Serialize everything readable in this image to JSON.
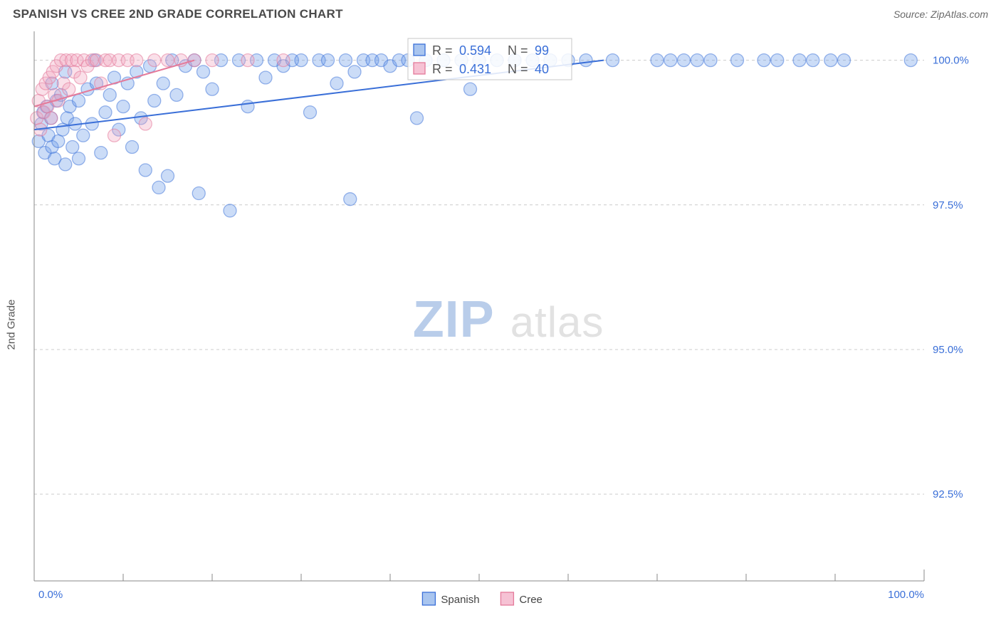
{
  "header": {
    "title": "SPANISH VS CREE 2ND GRADE CORRELATION CHART",
    "source": "Source: ZipAtlas.com"
  },
  "chart": {
    "type": "scatter",
    "ylabel": "2nd Grade",
    "background_color": "#ffffff",
    "grid_color": "#cccccc",
    "axis_color": "#888888",
    "xlim": [
      0,
      100
    ],
    "ylim": [
      91.0,
      100.5
    ],
    "x_ticks_major": [
      0,
      100
    ],
    "x_ticks_minor": [
      10,
      20,
      30,
      40,
      50,
      60,
      70,
      80,
      90
    ],
    "y_gridlines": [
      92.5,
      95.0,
      97.5,
      100.0
    ],
    "y_tick_labels": [
      "92.5%",
      "95.0%",
      "97.5%",
      "100.0%"
    ],
    "x_tick_labels": {
      "min": "0.0%",
      "max": "100.0%"
    },
    "marker_radius": 9,
    "series": [
      {
        "name": "Spanish",
        "color_fill": "#6b9be8",
        "color_stroke": "#3a6fd8",
        "R": "0.594",
        "N": "99",
        "trend": {
          "x1": 0,
          "y1": 98.8,
          "x2": 64,
          "y2": 100.0
        },
        "points": [
          [
            0.5,
            98.6
          ],
          [
            0.8,
            98.9
          ],
          [
            1.0,
            99.1
          ],
          [
            1.2,
            98.4
          ],
          [
            1.4,
            99.2
          ],
          [
            1.6,
            98.7
          ],
          [
            1.9,
            99.0
          ],
          [
            2.0,
            98.5
          ],
          [
            2.3,
            98.3
          ],
          [
            2.5,
            99.3
          ],
          [
            2.7,
            98.6
          ],
          [
            3.0,
            99.4
          ],
          [
            3.2,
            98.8
          ],
          [
            3.5,
            98.2
          ],
          [
            3.7,
            99.0
          ],
          [
            4.0,
            99.2
          ],
          [
            4.3,
            98.5
          ],
          [
            4.6,
            98.9
          ],
          [
            5.0,
            99.3
          ],
          [
            5.5,
            98.7
          ],
          [
            6.0,
            99.5
          ],
          [
            6.5,
            98.9
          ],
          [
            7.0,
            99.6
          ],
          [
            7.5,
            98.4
          ],
          [
            8.0,
            99.1
          ],
          [
            8.5,
            99.4
          ],
          [
            9.0,
            99.7
          ],
          [
            9.5,
            98.8
          ],
          [
            10.0,
            99.2
          ],
          [
            10.5,
            99.6
          ],
          [
            11.0,
            98.5
          ],
          [
            11.5,
            99.8
          ],
          [
            12.0,
            99.0
          ],
          [
            12.5,
            98.1
          ],
          [
            13.0,
            99.9
          ],
          [
            13.5,
            99.3
          ],
          [
            14.0,
            97.8
          ],
          [
            14.5,
            99.6
          ],
          [
            15.0,
            98.0
          ],
          [
            15.5,
            100.0
          ],
          [
            16.0,
            99.4
          ],
          [
            17.0,
            99.9
          ],
          [
            18.0,
            100.0
          ],
          [
            18.5,
            97.7
          ],
          [
            19.0,
            99.8
          ],
          [
            20.0,
            99.5
          ],
          [
            21.0,
            100.0
          ],
          [
            22.0,
            97.4
          ],
          [
            23.0,
            100.0
          ],
          [
            24.0,
            99.2
          ],
          [
            25.0,
            100.0
          ],
          [
            26.0,
            99.7
          ],
          [
            27.0,
            100.0
          ],
          [
            28.0,
            99.9
          ],
          [
            29.0,
            100.0
          ],
          [
            30.0,
            100.0
          ],
          [
            31.0,
            99.1
          ],
          [
            32.0,
            100.0
          ],
          [
            33.0,
            100.0
          ],
          [
            34.0,
            99.6
          ],
          [
            35.0,
            100.0
          ],
          [
            35.5,
            97.6
          ],
          [
            36.0,
            99.8
          ],
          [
            37.0,
            100.0
          ],
          [
            38.0,
            100.0
          ],
          [
            39.0,
            100.0
          ],
          [
            40.0,
            99.9
          ],
          [
            41.0,
            100.0
          ],
          [
            42.0,
            100.0
          ],
          [
            43.0,
            99.0
          ],
          [
            44.0,
            100.0
          ],
          [
            46.0,
            100.0
          ],
          [
            48.0,
            100.0
          ],
          [
            49.0,
            99.5
          ],
          [
            50.0,
            100.0
          ],
          [
            52.0,
            100.0
          ],
          [
            54.0,
            100.0
          ],
          [
            56.0,
            100.0
          ],
          [
            58.0,
            100.0
          ],
          [
            60.0,
            100.0
          ],
          [
            62.0,
            100.0
          ],
          [
            65.0,
            100.0
          ],
          [
            70.0,
            100.0
          ],
          [
            71.5,
            100.0
          ],
          [
            73.0,
            100.0
          ],
          [
            74.5,
            100.0
          ],
          [
            76.0,
            100.0
          ],
          [
            79.0,
            100.0
          ],
          [
            82.0,
            100.0
          ],
          [
            83.5,
            100.0
          ],
          [
            86.0,
            100.0
          ],
          [
            87.5,
            100.0
          ],
          [
            89.5,
            100.0
          ],
          [
            91.0,
            100.0
          ],
          [
            98.5,
            100.0
          ],
          [
            2.0,
            99.6
          ],
          [
            3.5,
            99.8
          ],
          [
            5.0,
            98.3
          ],
          [
            6.8,
            100.0
          ]
        ]
      },
      {
        "name": "Cree",
        "color_fill": "#f2a6c0",
        "color_stroke": "#e47a9a",
        "R": "0.431",
        "N": "40",
        "trend": {
          "x1": 0,
          "y1": 99.2,
          "x2": 18,
          "y2": 100.0
        },
        "points": [
          [
            0.3,
            99.0
          ],
          [
            0.5,
            99.3
          ],
          [
            0.7,
            98.8
          ],
          [
            0.9,
            99.5
          ],
          [
            1.1,
            99.1
          ],
          [
            1.3,
            99.6
          ],
          [
            1.5,
            99.2
          ],
          [
            1.7,
            99.7
          ],
          [
            1.9,
            99.0
          ],
          [
            2.1,
            99.8
          ],
          [
            2.3,
            99.4
          ],
          [
            2.5,
            99.9
          ],
          [
            2.7,
            99.3
          ],
          [
            3.0,
            100.0
          ],
          [
            3.3,
            99.6
          ],
          [
            3.6,
            100.0
          ],
          [
            3.9,
            99.5
          ],
          [
            4.2,
            100.0
          ],
          [
            4.5,
            99.8
          ],
          [
            4.8,
            100.0
          ],
          [
            5.2,
            99.7
          ],
          [
            5.6,
            100.0
          ],
          [
            6.0,
            99.9
          ],
          [
            6.5,
            100.0
          ],
          [
            7.0,
            100.0
          ],
          [
            7.5,
            99.6
          ],
          [
            8.0,
            100.0
          ],
          [
            8.5,
            100.0
          ],
          [
            9.0,
            98.7
          ],
          [
            9.5,
            100.0
          ],
          [
            10.5,
            100.0
          ],
          [
            11.5,
            100.0
          ],
          [
            12.5,
            98.9
          ],
          [
            13.5,
            100.0
          ],
          [
            15.0,
            100.0
          ],
          [
            16.5,
            100.0
          ],
          [
            18.0,
            100.0
          ],
          [
            20.0,
            100.0
          ],
          [
            24.0,
            100.0
          ],
          [
            28.0,
            100.0
          ]
        ]
      }
    ],
    "legend": {
      "items": [
        "Spanish",
        "Cree"
      ]
    },
    "stats_labels": {
      "r": "R =",
      "n": "N ="
    },
    "watermark": {
      "part1": "ZIP",
      "part2": "atlas"
    }
  }
}
